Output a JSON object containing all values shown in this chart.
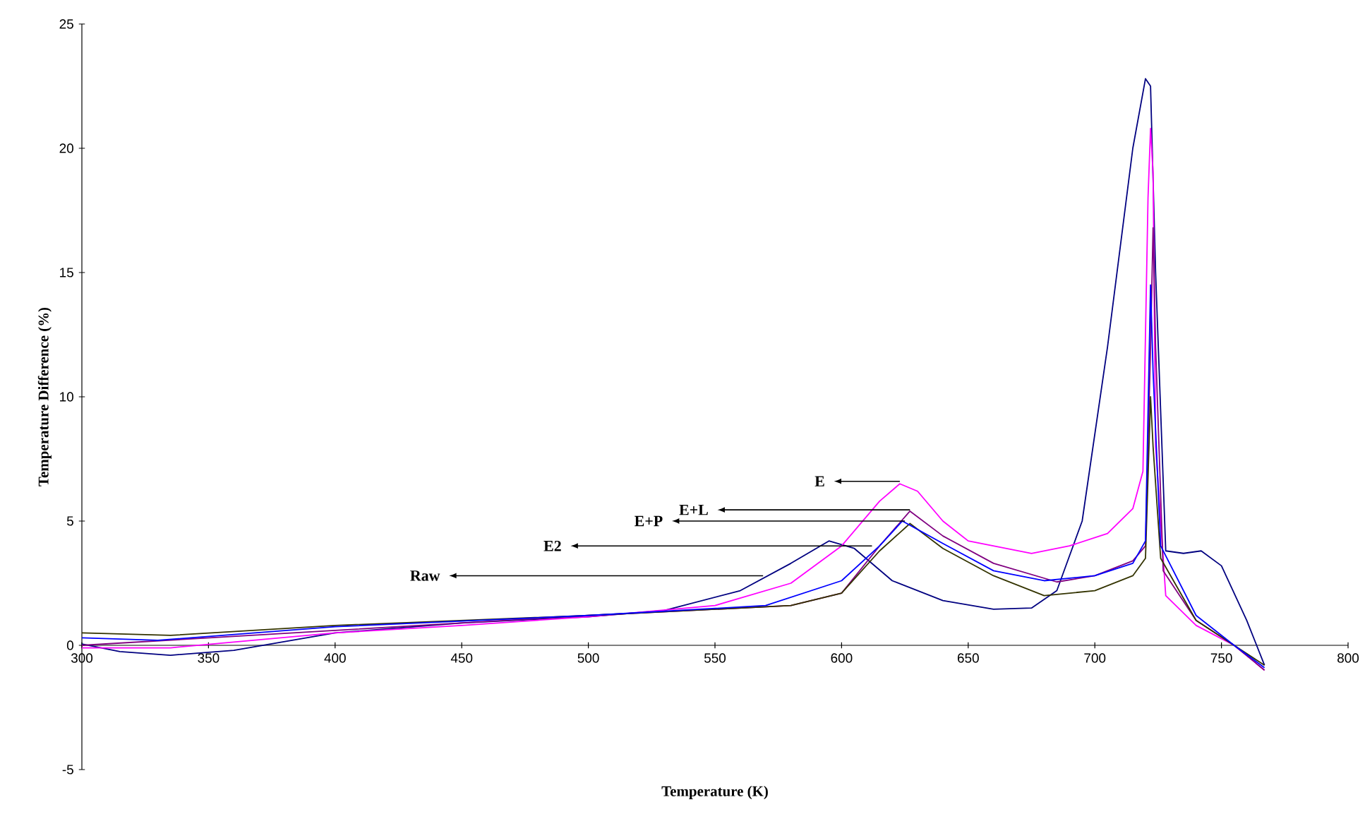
{
  "chart_data": {
    "type": "line",
    "xlabel": "Temperature (K)",
    "ylabel": "Temperature Difference (%)",
    "xlim": [
      300,
      800
    ],
    "xticks": [
      300,
      350,
      400,
      450,
      500,
      550,
      600,
      650,
      700,
      750,
      800
    ],
    "ylim": [
      -5,
      25
    ],
    "yticks": [
      -5,
      0,
      5,
      10,
      15,
      20,
      25
    ],
    "series": [
      {
        "color": "#000080",
        "x": [
          300,
          315,
          335,
          360,
          400,
          450,
          500,
          530,
          560,
          580,
          595,
          605,
          620,
          640,
          660,
          675,
          685,
          695,
          705,
          715,
          720,
          722,
          724,
          728,
          735,
          742,
          750,
          760,
          767
        ],
        "values": [
          0.05,
          -0.25,
          -0.4,
          -0.2,
          0.5,
          0.9,
          1.15,
          1.4,
          2.2,
          3.3,
          4.2,
          3.9,
          2.6,
          1.8,
          1.45,
          1.5,
          2.2,
          5,
          12,
          20,
          22.8,
          22.5,
          15,
          3.8,
          3.7,
          3.8,
          3.2,
          1.0,
          -0.8
        ]
      },
      {
        "color": "#ff00ff",
        "x": [
          300,
          335,
          400,
          450,
          500,
          550,
          580,
          600,
          615,
          623,
          630,
          640,
          650,
          675,
          690,
          705,
          715,
          719,
          721,
          722,
          723,
          724,
          728,
          740,
          755,
          767
        ],
        "values": [
          -0.1,
          -0.1,
          0.5,
          0.8,
          1.15,
          1.6,
          2.5,
          4.0,
          5.8,
          6.5,
          6.2,
          5.0,
          4.2,
          3.7,
          4.0,
          4.5,
          5.5,
          7,
          18,
          20.8,
          19,
          8,
          2,
          0.8,
          0,
          -1
        ]
      },
      {
        "color": "#800080",
        "x": [
          300,
          400,
          500,
          580,
          600,
          615,
          627,
          640,
          660,
          685,
          700,
          715,
          720,
          722,
          723,
          724,
          727,
          740,
          755,
          767
        ],
        "values": [
          0.0,
          0.6,
          1.2,
          1.6,
          2.1,
          4.0,
          5.4,
          4.4,
          3.3,
          2.55,
          2.8,
          3.4,
          4,
          12,
          16.8,
          12,
          3,
          1,
          0,
          -1
        ]
      },
      {
        "color": "#333300",
        "x": [
          300,
          335,
          400,
          500,
          580,
          600,
          615,
          627,
          640,
          660,
          680,
          700,
          715,
          720,
          722,
          723,
          726,
          740,
          755,
          767
        ],
        "values": [
          0.5,
          0.4,
          0.8,
          1.2,
          1.6,
          2.1,
          3.8,
          4.9,
          3.9,
          2.8,
          2.0,
          2.2,
          2.8,
          3.5,
          10,
          8,
          3.5,
          1,
          0,
          -0.8
        ]
      },
      {
        "color": "#0000ff",
        "x": [
          300,
          330,
          400,
          500,
          570,
          600,
          615,
          624,
          640,
          660,
          680,
          700,
          715,
          720,
          722,
          723,
          726,
          740,
          755,
          767
        ],
        "values": [
          0.3,
          0.2,
          0.75,
          1.2,
          1.6,
          2.6,
          4.0,
          5.0,
          4.1,
          3.0,
          2.6,
          2.8,
          3.3,
          4.2,
          14.5,
          11,
          4,
          1.2,
          0,
          -0.9
        ]
      }
    ],
    "annotations": [
      {
        "text": "E",
        "x": 623,
        "y": 6.6
      },
      {
        "text": "E+L",
        "x": 627,
        "y": 5.45
      },
      {
        "text": "E+P",
        "x": 625,
        "y": 5.0
      },
      {
        "text": "E2",
        "x": 612,
        "y": 4.0
      },
      {
        "text": "Raw",
        "x": 569,
        "y": 2.8
      }
    ]
  }
}
